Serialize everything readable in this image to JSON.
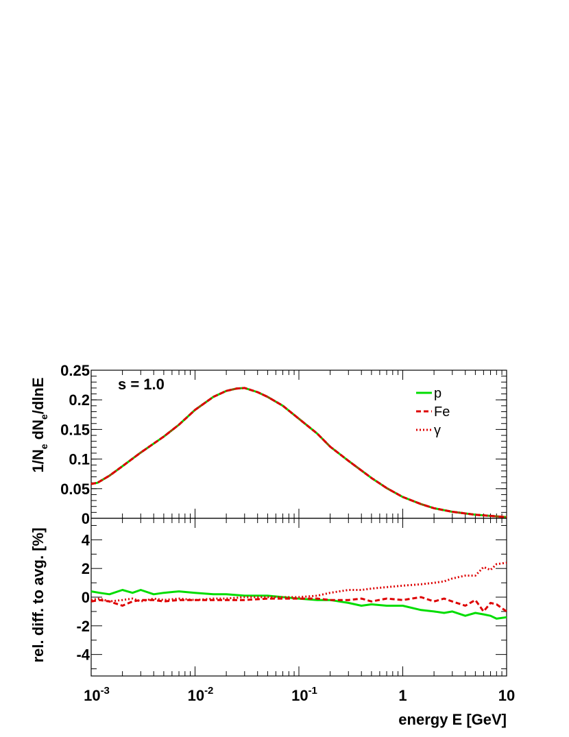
{
  "chart_data": [
    {
      "type": "line",
      "annotation": "s = 1.0",
      "ylabel": "1/N_e dN_e/dlnE",
      "xscale": "log",
      "xlim": [
        0.001,
        10
      ],
      "ylim": [
        0,
        0.25
      ],
      "yticks": [
        "0",
        "0.05",
        "0.1",
        "0.15",
        "0.2",
        "0.25"
      ],
      "legend": {
        "placement": "top-right",
        "entries": [
          "p",
          "Fe",
          "γ"
        ]
      },
      "x": [
        0.001,
        0.00115,
        0.0015,
        0.002,
        0.003,
        0.005,
        0.007,
        0.01,
        0.015,
        0.02,
        0.025,
        0.03,
        0.04,
        0.05,
        0.07,
        0.1,
        0.15,
        0.2,
        0.3,
        0.5,
        0.7,
        1,
        1.5,
        2,
        3,
        5,
        7,
        10
      ],
      "series": [
        {
          "name": "p",
          "color": "#00dd00",
          "dash": "solid",
          "values": [
            0.058,
            0.06,
            0.072,
            0.088,
            0.111,
            0.138,
            0.158,
            0.183,
            0.205,
            0.215,
            0.219,
            0.22,
            0.213,
            0.205,
            0.19,
            0.168,
            0.143,
            0.121,
            0.097,
            0.068,
            0.051,
            0.036,
            0.024,
            0.017,
            0.011,
            0.006,
            0.004,
            0.002
          ]
        },
        {
          "name": "Fe",
          "color": "#dd0000",
          "dash": "dashed",
          "values": [
            0.058,
            0.06,
            0.072,
            0.088,
            0.111,
            0.138,
            0.158,
            0.183,
            0.205,
            0.215,
            0.219,
            0.22,
            0.213,
            0.205,
            0.19,
            0.168,
            0.143,
            0.121,
            0.097,
            0.068,
            0.051,
            0.036,
            0.024,
            0.017,
            0.011,
            0.006,
            0.004,
            0.002
          ]
        },
        {
          "name": "γ",
          "color": "#dd0000",
          "dash": "dotted",
          "values": [
            0.058,
            0.06,
            0.072,
            0.088,
            0.111,
            0.138,
            0.158,
            0.183,
            0.205,
            0.215,
            0.219,
            0.22,
            0.213,
            0.205,
            0.19,
            0.168,
            0.143,
            0.121,
            0.097,
            0.068,
            0.051,
            0.036,
            0.024,
            0.017,
            0.011,
            0.006,
            0.004,
            0.002
          ]
        }
      ]
    },
    {
      "type": "line",
      "ylabel": "rel. diff. to avg. [%]",
      "xlabel": "energy E [GeV]",
      "xscale": "log",
      "xlim": [
        0.001,
        10
      ],
      "ylim": [
        -5.5,
        5.5
      ],
      "yticks": [
        "-4",
        "-2",
        "0",
        "2",
        "4"
      ],
      "xticks": [
        "10^-3",
        "10^-2",
        "10^-1",
        "1",
        "10"
      ],
      "x": [
        0.001,
        0.0012,
        0.0015,
        0.002,
        0.0025,
        0.003,
        0.004,
        0.005,
        0.007,
        0.01,
        0.015,
        0.02,
        0.03,
        0.05,
        0.07,
        0.1,
        0.15,
        0.2,
        0.3,
        0.4,
        0.5,
        0.7,
        1,
        1.5,
        2,
        2.5,
        3,
        4,
        5,
        6,
        7,
        8,
        10
      ],
      "series": [
        {
          "name": "p",
          "color": "#00dd00",
          "dash": "solid",
          "values": [
            0.4,
            0.3,
            0.2,
            0.5,
            0.3,
            0.5,
            0.2,
            0.3,
            0.4,
            0.3,
            0.2,
            0.2,
            0.1,
            0.1,
            0.0,
            -0.1,
            -0.2,
            -0.2,
            -0.4,
            -0.6,
            -0.5,
            -0.6,
            -0.6,
            -0.9,
            -1.0,
            -1.1,
            -1.0,
            -1.3,
            -1.1,
            -1.2,
            -1.3,
            -1.5,
            -1.4
          ]
        },
        {
          "name": "Fe",
          "color": "#dd0000",
          "dash": "dashed",
          "values": [
            -0.3,
            -0.2,
            -0.3,
            -0.6,
            -0.3,
            -0.2,
            -0.2,
            -0.3,
            -0.2,
            -0.2,
            -0.2,
            -0.2,
            -0.2,
            -0.1,
            -0.1,
            -0.1,
            -0.1,
            -0.2,
            -0.2,
            -0.1,
            -0.3,
            -0.1,
            -0.2,
            0.0,
            -0.3,
            -0.1,
            -0.3,
            -0.6,
            -0.2,
            -1.0,
            -0.4,
            -0.5,
            -1.0
          ]
        },
        {
          "name": "γ",
          "color": "#dd0000",
          "dash": "dotted",
          "values": [
            -0.2,
            -0.1,
            -0.3,
            -0.2,
            -0.1,
            -0.3,
            -0.1,
            -0.2,
            -0.1,
            -0.2,
            -0.1,
            -0.1,
            0.0,
            0.0,
            0.0,
            0.0,
            0.1,
            0.3,
            0.5,
            0.5,
            0.6,
            0.7,
            0.8,
            0.9,
            1.0,
            1.1,
            1.3,
            1.5,
            1.5,
            2.1,
            1.9,
            2.3,
            2.4
          ]
        }
      ]
    }
  ]
}
